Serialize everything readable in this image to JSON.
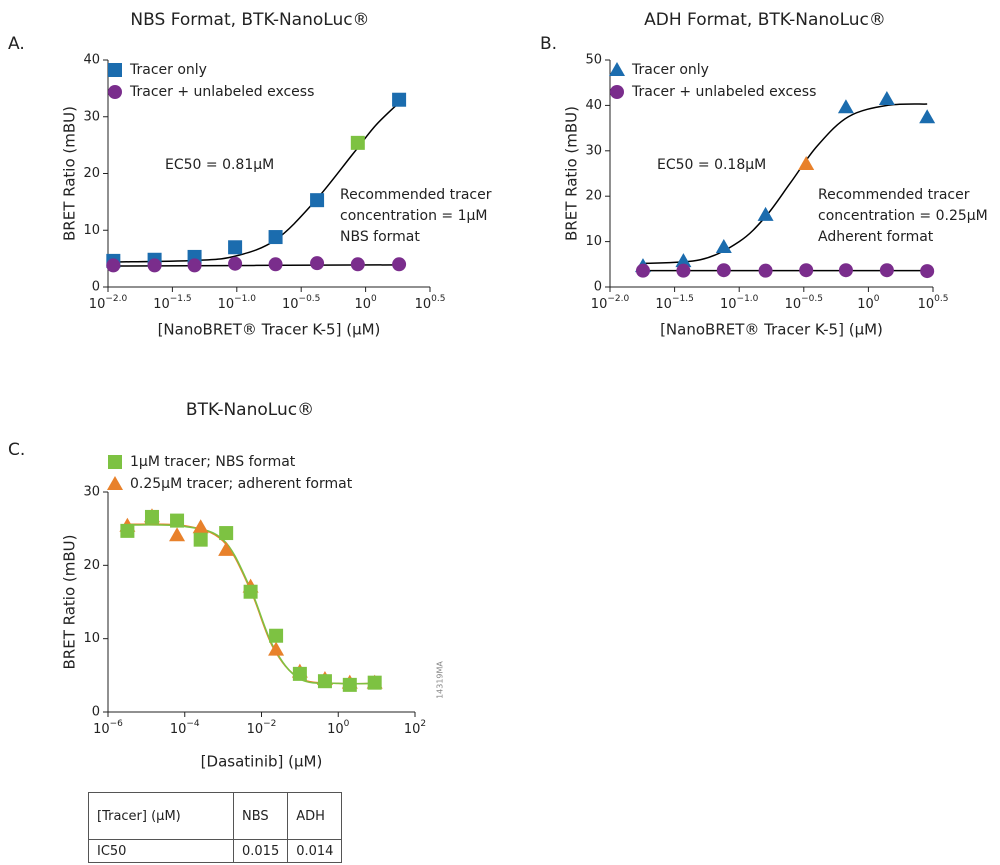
{
  "figure_code": "14319MA",
  "chart_data": [
    {
      "type": "scatter",
      "panel": "A.",
      "title": "NBS Format, BTK-NanoLuc®",
      "xlabel": "[NanoBRET® Tracer K-5] (µM)",
      "ylabel": "BRET Ratio (mBU)",
      "xscale": "log",
      "xlim": [
        0.01,
        3.162
      ],
      "xticks": [
        {
          "value": 0.01,
          "label": "10−2.0"
        },
        {
          "value": 0.03162,
          "label": "10−1.5"
        },
        {
          "value": 0.1,
          "label": "10−1.0"
        },
        {
          "value": 0.3162,
          "label": "10−0.5"
        },
        {
          "value": 1,
          "label": "100"
        },
        {
          "value": 3.162,
          "label": "100.5"
        }
      ],
      "ylim": [
        0,
        40
      ],
      "yticks": [
        0,
        10,
        20,
        30,
        40
      ],
      "legend": "upper left",
      "x": [
        0.011,
        0.023,
        0.047,
        0.097,
        0.2,
        0.42,
        0.87,
        1.82
      ],
      "series": [
        {
          "name": "Tracer only",
          "marker": "square",
          "color": "#1b6cae",
          "values": [
            4.6,
            4.8,
            5.3,
            7.0,
            8.8,
            15.3,
            25.4,
            33.0
          ],
          "point_colors": [
            null,
            null,
            null,
            null,
            null,
            null,
            "#7dc242",
            null
          ],
          "fit": {
            "color": "#000000",
            "x": [
              0.011,
              0.05,
              0.1,
              0.2,
              0.4,
              0.8,
              1.2,
              1.82
            ],
            "values": [
              4.4,
              4.7,
              5.5,
              8.3,
              15,
              23.5,
              28.5,
              32.5
            ]
          }
        },
        {
          "name": "Tracer + unlabeled excess",
          "marker": "circle",
          "color": "#7a2d8c",
          "values": [
            3.8,
            3.8,
            3.8,
            4.1,
            4.0,
            4.2,
            4.0,
            4.0
          ],
          "fit": {
            "color": "#000000",
            "x": [
              0.011,
              1.82
            ],
            "values": [
              3.7,
              3.9
            ]
          }
        }
      ],
      "annotations": [
        "EC50 = 0.81µM",
        "Recommended tracer",
        "concentration = 1µM",
        "NBS format"
      ]
    },
    {
      "type": "scatter",
      "panel": "B.",
      "title": "ADH Format, BTK-NanoLuc®",
      "xlabel": "[NanoBRET® Tracer K-5] (µM)",
      "ylabel": "BRET Ratio (mBU)",
      "xscale": "log",
      "xlim": [
        0.01,
        3.162
      ],
      "xticks": [
        {
          "value": 0.01,
          "label": "10−2.0"
        },
        {
          "value": 0.03162,
          "label": "10−1.5"
        },
        {
          "value": 0.1,
          "label": "10−1.0"
        },
        {
          "value": 0.3162,
          "label": "10−0.5"
        },
        {
          "value": 1,
          "label": "100"
        },
        {
          "value": 3.162,
          "label": "100.5"
        }
      ],
      "ylim": [
        0,
        50
      ],
      "yticks": [
        0,
        10,
        20,
        30,
        40,
        50
      ],
      "legend": "upper left",
      "x": [
        0.018,
        0.037,
        0.076,
        0.16,
        0.33,
        0.67,
        1.39,
        2.85
      ],
      "series": [
        {
          "name": "Tracer only",
          "marker": "triangle",
          "color": "#1b6cae",
          "values": [
            4.6,
            5.7,
            8.8,
            15.9,
            27.1,
            39.6,
            41.4,
            37.4
          ],
          "point_colors": [
            null,
            null,
            null,
            null,
            "#e8812b",
            null,
            null,
            null
          ],
          "fit": {
            "color": "#000000",
            "x": [
              0.018,
              0.05,
              0.1,
              0.16,
              0.25,
              0.4,
              0.7,
              1.4,
              2.85
            ],
            "values": [
              5.2,
              6,
              10,
              15.5,
              23,
              31,
              37.5,
              40,
              40.3
            ]
          }
        },
        {
          "name": "Tracer + unlabeled excess",
          "marker": "circle",
          "color": "#7a2d8c",
          "values": [
            3.6,
            3.6,
            3.7,
            3.6,
            3.7,
            3.7,
            3.7,
            3.5
          ],
          "fit": {
            "color": "#000000",
            "x": [
              0.018,
              2.85
            ],
            "values": [
              3.6,
              3.6
            ]
          }
        }
      ],
      "annotations": [
        "EC50 = 0.18µM",
        "Recommended tracer",
        "concentration = 0.25µM",
        "Adherent format"
      ]
    },
    {
      "type": "scatter",
      "panel": "C.",
      "title": "BTK-NanoLuc®",
      "xlabel": "[Dasatinib] (µM)",
      "ylabel": "BRET Ratio (mBU)",
      "xscale": "log",
      "xlim": [
        1e-06,
        100
      ],
      "xticks": [
        {
          "value": 1e-06,
          "label": "10−6"
        },
        {
          "value": 0.0001,
          "label": "10−4"
        },
        {
          "value": 0.01,
          "label": "10−2"
        },
        {
          "value": 1,
          "label": "100"
        },
        {
          "value": 100,
          "label": "102"
        }
      ],
      "ylim": [
        0,
        30
      ],
      "yticks": [
        0,
        10,
        20,
        30
      ],
      "legend": "above",
      "x": [
        3.2e-06,
        1.4e-05,
        6.3e-05,
        0.00026,
        0.0012,
        0.0052,
        0.024,
        0.1,
        0.45,
        2.0,
        8.9
      ],
      "series": [
        {
          "name": "0.25µM tracer; adherent format",
          "marker": "triangle",
          "color": "#e8812b",
          "values": [
            25.4,
            26.7,
            24.1,
            25.2,
            22.1,
            17.1,
            8.5,
            5.5,
            4.5,
            4.0,
            4.0
          ],
          "fit": {
            "color": "#e8812b",
            "x": [
              3.2e-06,
              0.0001,
              0.001,
              0.005,
              0.02,
              0.1,
              1,
              8.9
            ],
            "values": [
              25.6,
              25.4,
              23.3,
              16.8,
              8.8,
              4.6,
              3.9,
              3.9
            ]
          }
        },
        {
          "name": "1µM tracer; NBS format",
          "marker": "square",
          "color": "#7dc242",
          "values": [
            24.7,
            26.6,
            26.1,
            23.5,
            24.4,
            16.4,
            10.4,
            5.2,
            4.2,
            3.7,
            4.0
          ],
          "fit": {
            "color": "#7dc242",
            "x": [
              3.2e-06,
              0.0001,
              0.001,
              0.005,
              0.02,
              0.1,
              1,
              8.9
            ],
            "values": [
              25.5,
              25.3,
              23.5,
              17,
              9,
              4.5,
              3.9,
              3.9
            ]
          }
        }
      ],
      "annotations": []
    }
  ],
  "table": {
    "rows": [
      [
        "[Tracer] (µM)",
        "NBS",
        "ADH"
      ],
      [
        "IC50",
        "0.015",
        "0.014"
      ]
    ]
  }
}
